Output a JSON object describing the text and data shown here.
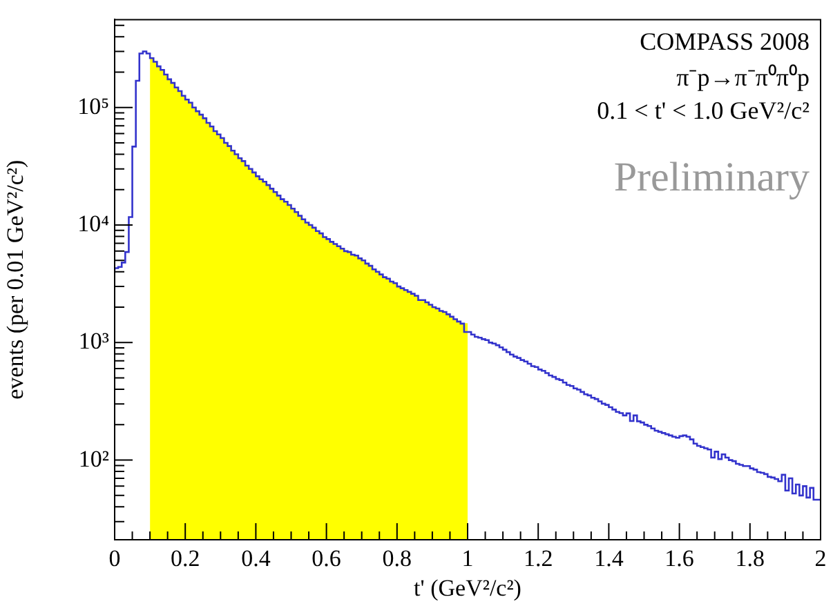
{
  "chart_data": {
    "type": "step",
    "xlabel": "t' (GeV²/c²)",
    "ylabel": "events (per 0.01 GeV²/c²)",
    "annotations": [
      "COMPASS 2008",
      "π⁻p→π⁻π⁰π⁰p",
      "0.1 < t' < 1.0 GeV²/c²",
      "Preliminary"
    ],
    "series": [
      {
        "type": "area",
        "color": "#ffff00",
        "x": [
          0.1,
          0.11,
          0.12,
          0.13,
          0.14,
          0.15,
          0.16,
          0.17,
          0.18,
          0.19,
          0.2,
          0.21,
          0.22,
          0.23,
          0.24,
          0.25,
          0.26,
          0.27,
          0.28,
          0.29,
          0.3,
          0.31,
          0.32,
          0.33,
          0.34,
          0.35,
          0.36,
          0.37,
          0.38,
          0.39,
          0.4,
          0.41,
          0.42,
          0.43,
          0.44,
          0.45,
          0.46,
          0.47,
          0.48,
          0.49,
          0.5,
          0.51,
          0.52,
          0.53,
          0.54,
          0.55,
          0.56,
          0.57,
          0.58,
          0.59,
          0.6,
          0.61,
          0.62,
          0.63,
          0.64,
          0.65,
          0.66,
          0.67,
          0.68,
          0.69,
          0.7,
          0.71,
          0.72,
          0.73,
          0.74,
          0.75,
          0.76,
          0.77,
          0.78,
          0.79,
          0.8,
          0.81,
          0.82,
          0.83,
          0.84,
          0.85,
          0.86,
          0.87,
          0.88,
          0.89,
          0.9,
          0.91,
          0.92,
          0.93,
          0.94,
          0.95,
          0.96,
          0.97,
          0.98,
          0.99,
          1
        ],
        "values": [
          288000,
          263000,
          245000,
          224000,
          209000,
          191000,
          174000,
          162000,
          148000,
          138000,
          126000,
          117000,
          110000,
          100000,
          93000,
          87000,
          81000,
          74000,
          69000,
          63000,
          59000,
          55000,
          50000,
          47000,
          43000,
          40000,
          37000,
          35000,
          32000,
          30000,
          28000,
          26000,
          24500,
          23400,
          21900,
          20400,
          19100,
          17800,
          16600,
          15800,
          14800,
          13800,
          12900,
          12000,
          11200,
          10500,
          10000,
          9500,
          8900,
          8500,
          7900,
          7600,
          7200,
          6900,
          6600,
          6300,
          6000,
          5900,
          5600,
          5500,
          5200,
          5000,
          4700,
          4500,
          4200,
          4000,
          3800,
          3600,
          3500,
          3300,
          3200,
          3000,
          2900,
          2800,
          2700,
          2600,
          2500,
          2300,
          2300,
          2200,
          2100,
          2000,
          1950,
          1860,
          1820,
          1740,
          1660,
          1580,
          1510,
          1450,
          1450
        ]
      },
      {
        "color": "#3333cc",
        "x": [
          0,
          0.01,
          0.02,
          0.03,
          0.04,
          0.05,
          0.06,
          0.07,
          0.08,
          0.09,
          0.1,
          0.11,
          0.12,
          0.13,
          0.14,
          0.15,
          0.16,
          0.17,
          0.18,
          0.19,
          0.2,
          0.21,
          0.22,
          0.23,
          0.24,
          0.25,
          0.26,
          0.27,
          0.28,
          0.29,
          0.3,
          0.31,
          0.32,
          0.33,
          0.34,
          0.35,
          0.36,
          0.37,
          0.38,
          0.39,
          0.4,
          0.41,
          0.42,
          0.43,
          0.44,
          0.45,
          0.46,
          0.47,
          0.48,
          0.49,
          0.5,
          0.51,
          0.52,
          0.53,
          0.54,
          0.55,
          0.56,
          0.57,
          0.58,
          0.59,
          0.6,
          0.61,
          0.62,
          0.63,
          0.64,
          0.65,
          0.66,
          0.67,
          0.68,
          0.69,
          0.7,
          0.71,
          0.72,
          0.73,
          0.74,
          0.75,
          0.76,
          0.77,
          0.78,
          0.79,
          0.8,
          0.81,
          0.82,
          0.83,
          0.84,
          0.85,
          0.86,
          0.87,
          0.88,
          0.89,
          0.9,
          0.91,
          0.92,
          0.93,
          0.94,
          0.95,
          0.96,
          0.97,
          0.98,
          0.99,
          1,
          1.01,
          1.02,
          1.03,
          1.04,
          1.05,
          1.06,
          1.07,
          1.08,
          1.09,
          1.1,
          1.11,
          1.12,
          1.13,
          1.14,
          1.15,
          1.16,
          1.17,
          1.18,
          1.19,
          1.2,
          1.21,
          1.22,
          1.23,
          1.24,
          1.25,
          1.26,
          1.27,
          1.28,
          1.29,
          1.3,
          1.31,
          1.32,
          1.33,
          1.34,
          1.35,
          1.36,
          1.37,
          1.38,
          1.39,
          1.4,
          1.41,
          1.42,
          1.43,
          1.44,
          1.45,
          1.46,
          1.47,
          1.48,
          1.49,
          1.5,
          1.51,
          1.52,
          1.53,
          1.54,
          1.55,
          1.56,
          1.57,
          1.58,
          1.59,
          1.6,
          1.61,
          1.62,
          1.63,
          1.64,
          1.65,
          1.66,
          1.67,
          1.68,
          1.69,
          1.7,
          1.71,
          1.72,
          1.73,
          1.74,
          1.75,
          1.76,
          1.77,
          1.78,
          1.79,
          1.8,
          1.81,
          1.82,
          1.83,
          1.84,
          1.85,
          1.86,
          1.87,
          1.88,
          1.89,
          1.9,
          1.91,
          1.92,
          1.93,
          1.94,
          1.95,
          1.96,
          1.97,
          1.98,
          1.99,
          2
        ],
        "values": [
          4100,
          4300,
          4400,
          4800,
          5900,
          11700,
          46500,
          169000,
          288000,
          300000,
          288000,
          263000,
          245000,
          224000,
          209000,
          191000,
          174000,
          162000,
          148000,
          138000,
          126000,
          117000,
          110000,
          100000,
          93000,
          87000,
          81000,
          74000,
          69000,
          63000,
          59000,
          55000,
          50000,
          47000,
          43000,
          40000,
          37000,
          35000,
          32000,
          30000,
          28000,
          26000,
          24500,
          23400,
          21900,
          20400,
          19100,
          17800,
          16600,
          15800,
          14800,
          13800,
          12900,
          12000,
          11200,
          10500,
          10000,
          9500,
          8900,
          8500,
          7900,
          7600,
          7200,
          6900,
          6600,
          6300,
          6000,
          5900,
          5600,
          5500,
          5200,
          5000,
          4700,
          4500,
          4200,
          4000,
          3800,
          3600,
          3500,
          3300,
          3200,
          3000,
          2900,
          2800,
          2700,
          2600,
          2500,
          2300,
          2300,
          2200,
          2100,
          2000,
          1950,
          1860,
          1820,
          1740,
          1660,
          1580,
          1510,
          1450,
          1230,
          1230,
          1170,
          1120,
          1100,
          1070,
          1050,
          1000,
          980,
          950,
          910,
          870,
          830,
          790,
          760,
          740,
          710,
          690,
          660,
          630,
          620,
          590,
          575,
          550,
          525,
          510,
          490,
          480,
          457,
          436,
          427,
          407,
          398,
          380,
          363,
          355,
          339,
          331,
          316,
          302,
          295,
          282,
          269,
          257,
          251,
          240,
          250,
          215,
          240,
          214,
          209,
          200,
          195,
          186,
          178,
          174,
          170,
          166,
          162,
          158,
          155,
          160,
          162,
          158,
          150,
          138,
          132,
          129,
          126,
          123,
          105,
          118,
          102,
          112,
          105,
          100,
          98,
          93,
          91,
          89,
          89,
          85,
          83,
          79,
          78,
          76,
          72,
          71,
          69,
          66,
          75,
          55,
          70,
          52,
          62,
          50,
          60,
          48,
          58,
          46,
          46
        ]
      }
    ],
    "log": "y",
    "xlim": [
      0,
      2
    ],
    "ylim": [
      21,
      560000
    ],
    "xticks": [
      0,
      {
        "value": 0.05,
        "label": null
      },
      {
        "value": 0.1,
        "label": null
      },
      {
        "value": 0.15,
        "label": null
      },
      0.2,
      {
        "value": 0.25,
        "label": null
      },
      {
        "value": 0.3,
        "label": null
      },
      {
        "value": 0.35,
        "label": null
      },
      0.4,
      {
        "value": 0.45,
        "label": null
      },
      {
        "value": 0.5,
        "label": null
      },
      {
        "value": 0.55,
        "label": null
      },
      0.6,
      {
        "value": 0.65,
        "label": null
      },
      {
        "value": 0.7,
        "label": null
      },
      {
        "value": 0.75,
        "label": null
      },
      0.8,
      {
        "value": 0.85,
        "label": null
      },
      {
        "value": 0.9,
        "label": null
      },
      {
        "value": 0.95,
        "label": null
      },
      1,
      {
        "value": 1.05,
        "label": null
      },
      {
        "value": 1.1,
        "label": null
      },
      {
        "value": 1.15,
        "label": null
      },
      1.2,
      {
        "value": 1.25,
        "label": null
      },
      {
        "value": 1.3,
        "label": null
      },
      {
        "value": 1.35,
        "label": null
      },
      1.4,
      {
        "value": 1.45,
        "label": null
      },
      {
        "value": 1.5,
        "label": null
      },
      {
        "value": 1.55,
        "label": null
      },
      1.6,
      {
        "value": 1.65,
        "label": null
      },
      {
        "value": 1.7,
        "label": null
      },
      {
        "value": 1.75,
        "label": null
      },
      1.8,
      {
        "value": 1.85,
        "label": null
      },
      {
        "value": 1.9,
        "label": null
      },
      {
        "value": 1.95,
        "label": null
      },
      2
    ],
    "yticks": [
      {
        "value": 30,
        "label": null
      },
      {
        "value": 40,
        "label": null
      },
      {
        "value": 50,
        "label": null
      },
      {
        "value": 60,
        "label": null
      },
      {
        "value": 70,
        "label": null
      },
      {
        "value": 80,
        "label": null
      },
      {
        "value": 90,
        "label": null
      },
      {
        "value": 100,
        "label": "10²"
      },
      {
        "value": 200,
        "label": null
      },
      {
        "value": 300,
        "label": null
      },
      {
        "value": 400,
        "label": null
      },
      {
        "value": 500,
        "label": null
      },
      {
        "value": 600,
        "label": null
      },
      {
        "value": 700,
        "label": null
      },
      {
        "value": 800,
        "label": null
      },
      {
        "value": 900,
        "label": null
      },
      {
        "value": 1000,
        "label": "10³"
      },
      {
        "value": 2000,
        "label": null
      },
      {
        "value": 3000,
        "label": null
      },
      {
        "value": 4000,
        "label": null
      },
      {
        "value": 5000,
        "label": null
      },
      {
        "value": 6000,
        "label": null
      },
      {
        "value": 7000,
        "label": null
      },
      {
        "value": 8000,
        "label": null
      },
      {
        "value": 9000,
        "label": null
      },
      {
        "value": 10000,
        "label": "10⁴"
      },
      {
        "value": 20000,
        "label": null
      },
      {
        "value": 30000,
        "label": null
      },
      {
        "value": 40000,
        "label": null
      },
      {
        "value": 50000,
        "label": null
      },
      {
        "value": 60000,
        "label": null
      },
      {
        "value": 70000,
        "label": null
      },
      {
        "value": 80000,
        "label": null
      },
      {
        "value": 90000,
        "label": null
      },
      {
        "value": 100000,
        "label": "10⁵"
      },
      {
        "value": 200000,
        "label": null
      },
      {
        "value": 300000,
        "label": null
      },
      {
        "value": 400000,
        "label": null
      },
      {
        "value": 500000,
        "label": null
      }
    ]
  }
}
